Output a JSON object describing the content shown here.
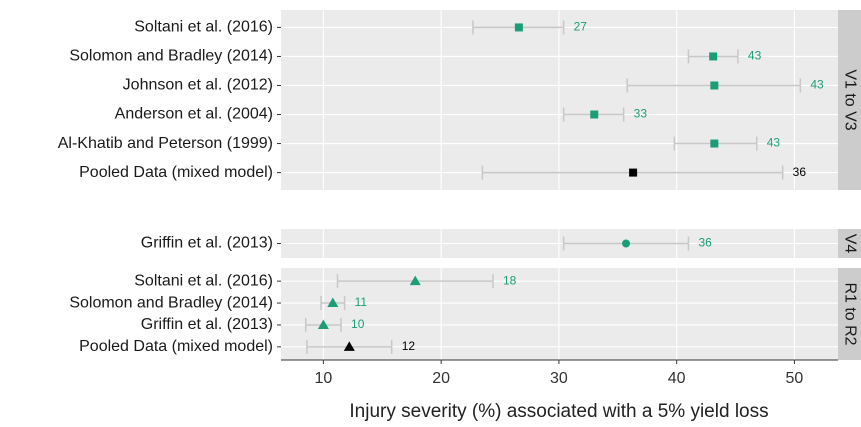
{
  "chart_data": {
    "type": "forest",
    "xlabel": "Injury severity (%) associated with a 5% yield loss",
    "xlim": [
      6.4,
      53.7
    ],
    "xticks": [
      10,
      20,
      30,
      40,
      50
    ],
    "grid": true,
    "facets": [
      {
        "name": "V1 to V3",
        "shape": "square",
        "categories": [
          "Soltani et al. (2016)",
          "Solomon and Bradley (2014)",
          "Johnson et al. (2012)",
          "Anderson et al. (2004)",
          "Al-Khatib and Peterson (1999)",
          "Pooled Data (mixed model)"
        ],
        "values": [
          26.6,
          43.1,
          43.2,
          33.0,
          43.2,
          36.3
        ],
        "value_labels": [
          "27",
          "43",
          "43",
          "33",
          "43",
          "36"
        ],
        "lower": [
          22.7,
          41.0,
          35.8,
          30.4,
          39.8,
          23.5
        ],
        "upper": [
          30.4,
          45.2,
          50.5,
          35.5,
          46.8,
          49.0
        ],
        "colors": [
          "#1b9e77",
          "#1b9e77",
          "#1b9e77",
          "#1b9e77",
          "#1b9e77",
          "#000000"
        ]
      },
      {
        "name": "V4",
        "shape": "circle",
        "categories": [
          "Griffin et al. (2013)"
        ],
        "values": [
          35.7
        ],
        "value_labels": [
          "36"
        ],
        "lower": [
          30.4
        ],
        "upper": [
          41.0
        ],
        "colors": [
          "#1b9e77"
        ]
      },
      {
        "name": "R1 to R2",
        "shape": "triangle",
        "categories": [
          "Soltani et al. (2016)",
          "Solomon and Bradley (2014)",
          "Griffin et al. (2013)",
          "Pooled Data (mixed model)"
        ],
        "values": [
          17.8,
          10.8,
          10.0,
          12.2
        ],
        "value_labels": [
          "18",
          "11",
          "10",
          "12"
        ],
        "lower": [
          11.2,
          9.8,
          8.5,
          8.6
        ],
        "upper": [
          24.4,
          11.8,
          11.5,
          15.8
        ],
        "colors": [
          "#1b9e77",
          "#1b9e77",
          "#1b9e77",
          "#000000"
        ]
      }
    ]
  }
}
